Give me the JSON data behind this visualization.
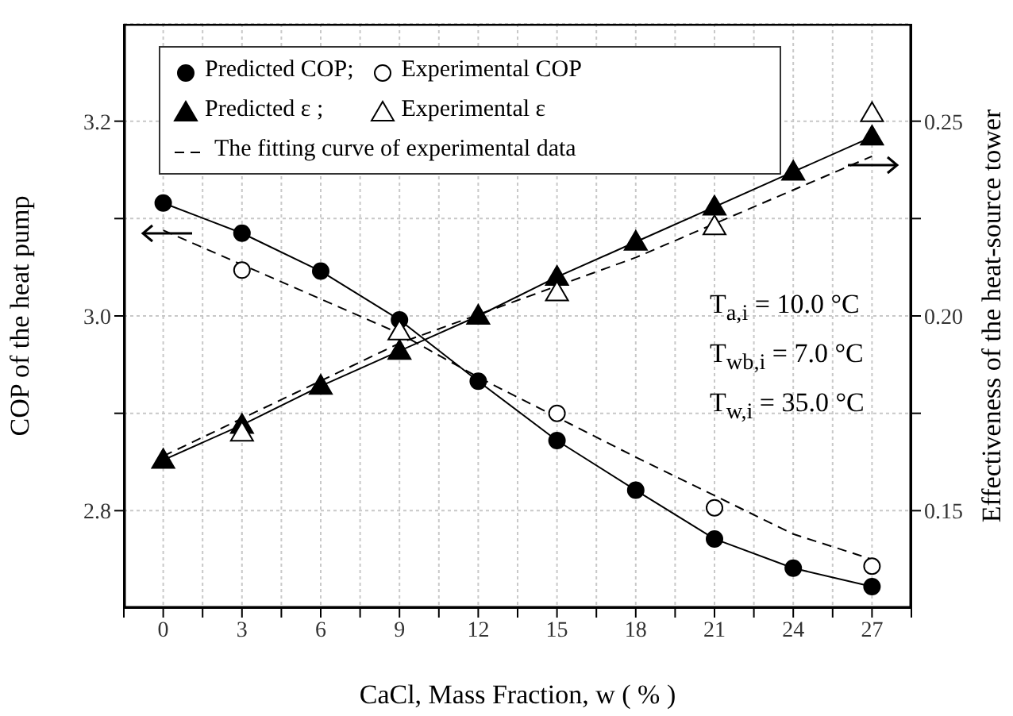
{
  "chart_data": {
    "type": "line",
    "xlabel": "CaCl, Mass Fraction, w ( % )",
    "ylabel": "COP of the heat pump",
    "y2label": "Effectiveness of the heat-source tower",
    "annotations": [
      "T$_{a,i}$ = 10.0 °C",
      "T$_{wb,i}$ = 7.0 °C",
      "T$_{w,i}$ = 35.0 °C"
    ],
    "xlim": [
      -1.5,
      28.5
    ],
    "xticks": [
      {
        "value": -1.5,
        "label": null
      },
      0,
      {
        "value": 1.5,
        "label": null
      },
      3,
      {
        "value": 4.5,
        "label": null
      },
      6,
      {
        "value": 7.5,
        "label": null
      },
      9,
      {
        "value": 10.5,
        "label": null
      },
      12,
      {
        "value": 13.5,
        "label": null
      },
      15,
      {
        "value": 16.5,
        "label": null
      },
      18,
      {
        "value": 19.5,
        "label": null
      },
      21,
      {
        "value": 22.5,
        "label": null
      },
      24,
      {
        "value": 25.5,
        "label": null
      },
      27,
      {
        "value": 28.5,
        "label": null
      }
    ],
    "ylim": [
      2.7,
      3.3
    ],
    "yticks": [
      2.8,
      {
        "value": 2.9,
        "label": null
      },
      {
        "value": 3,
        "label": "3.0"
      },
      {
        "value": 3.1,
        "label": null
      },
      3.2
    ],
    "y2lim": [
      0.125,
      0.275
    ],
    "y2ticks": [
      0.15,
      {
        "value": 0.175,
        "label": null
      },
      {
        "value": 0.2,
        "label": "0.20"
      },
      {
        "value": 0.225,
        "label": null
      },
      0.25
    ],
    "grid": true,
    "legend": "top",
    "series": [
      {
        "name": "Predicted COP;",
        "color": "#000000",
        "marker": "circle",
        "line_style": "solid",
        "x": [
          0,
          3,
          6,
          9,
          12,
          15,
          18,
          21,
          24,
          27
        ],
        "values": [
          3.116,
          3.085,
          3.046,
          2.996,
          2.933,
          2.872,
          2.821,
          2.771,
          2.741,
          2.722
        ]
      },
      {
        "name": "Experimental COP",
        "type": "scatter",
        "color": "#000000",
        "marker": "circle",
        "x": [
          3,
          15,
          21,
          27
        ],
        "values": [
          3.047,
          2.9,
          2.803,
          2.743
        ]
      },
      {
        "name": "Predicted ε ;",
        "axis": "y2",
        "color": "#000000",
        "marker": "triangle",
        "line_style": "solid",
        "x": [
          0,
          3,
          6,
          9,
          12,
          15,
          18,
          21,
          24,
          27
        ],
        "values": [
          0.163,
          0.172,
          0.182,
          0.191,
          0.2,
          0.21,
          0.219,
          0.228,
          0.237,
          0.246
        ]
      },
      {
        "name": "Experimental ε",
        "type": "scatter",
        "axis": "y2",
        "color": "#000000",
        "marker": "triangle",
        "x": [
          3,
          9,
          15,
          21,
          27
        ],
        "values": [
          0.17,
          0.196,
          0.206,
          0.223,
          0.252
        ]
      },
      {
        "name": "The fitting curve of experimental data",
        "color": "#000000",
        "marker": "none",
        "line_style": "dashed",
        "x": [
          0,
          9,
          12,
          18,
          24,
          27
        ],
        "values": [
          3.088,
          2.982,
          2.937,
          2.855,
          2.776,
          2.75
        ]
      },
      {
        "axis": "y2",
        "color": "#000000",
        "marker": "none",
        "line_style": "dashed",
        "x": [
          0,
          9,
          18,
          27
        ],
        "values": [
          0.164,
          0.193,
          0.215,
          0.241
        ]
      }
    ]
  }
}
